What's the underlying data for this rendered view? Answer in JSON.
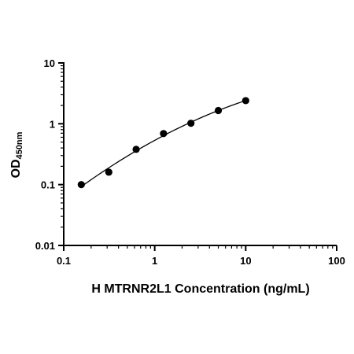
{
  "chart_data": {
    "type": "scatter",
    "title": "",
    "xlabel": "H MTRNR2L1 Concentration (ng/mL)",
    "ylabel": "OD",
    "ylabel_subscript": "450nm",
    "xscale": "log",
    "yscale": "log",
    "xlim": [
      0.1,
      100
    ],
    "ylim": [
      0.01,
      10
    ],
    "x_ticks": [
      0.1,
      1,
      10,
      100
    ],
    "x_tick_labels": [
      "0.1",
      "1",
      "10",
      "100"
    ],
    "y_ticks": [
      0.01,
      0.1,
      1,
      10
    ],
    "y_tick_labels": [
      "0.01",
      "0.1",
      "1",
      "10"
    ],
    "grid": false,
    "legend": "none",
    "series": [
      {
        "x": [
          0.156,
          0.313,
          0.625,
          1.25,
          2.5,
          5,
          10
        ],
        "y": [
          0.1,
          0.16,
          0.38,
          0.69,
          1.02,
          1.65,
          2.4
        ],
        "marker": "circle",
        "fit_curve": true
      }
    ],
    "colors": {
      "marker": "#000000",
      "curve": "#000000",
      "axis": "#000000"
    }
  }
}
